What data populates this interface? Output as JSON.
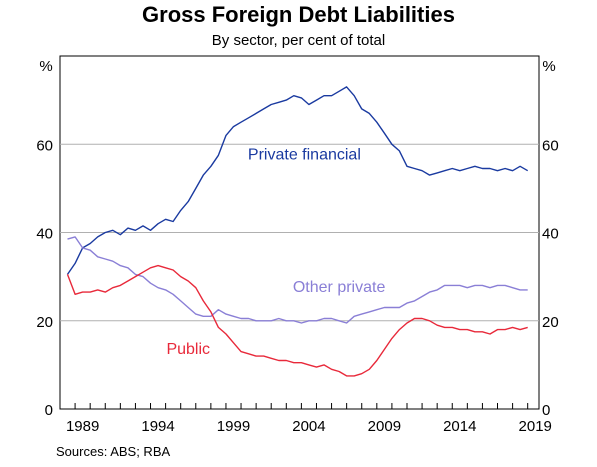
{
  "chart_data": {
    "type": "line",
    "title": "Gross Foreign Debt Liabilities",
    "subtitle": "By sector, per cent of total",
    "ylabel_left": "%",
    "ylabel_right": "%",
    "source": "Sources:   ABS; RBA",
    "xlim": [
      1988,
      2019.75
    ],
    "ylim": [
      0,
      80
    ],
    "y_ticks": [
      0,
      20,
      40,
      60
    ],
    "x_ticks": [
      1989,
      1994,
      1999,
      2004,
      2009,
      2014,
      2019
    ],
    "grid": "horizontal",
    "x": [
      1988.5,
      1989,
      1989.5,
      1990,
      1990.5,
      1991,
      1991.5,
      1992,
      1992.5,
      1993,
      1993.5,
      1994,
      1994.5,
      1995,
      1995.5,
      1996,
      1996.5,
      1997,
      1997.5,
      1998,
      1998.5,
      1999,
      1999.5,
      2000,
      2000.5,
      2001,
      2001.5,
      2002,
      2002.5,
      2003,
      2003.5,
      2004,
      2004.5,
      2005,
      2005.5,
      2006,
      2006.5,
      2007,
      2007.5,
      2008,
      2008.5,
      2009,
      2009.5,
      2010,
      2010.5,
      2011,
      2011.5,
      2012,
      2012.5,
      2013,
      2013.5,
      2014,
      2014.5,
      2015,
      2015.5,
      2016,
      2016.5,
      2017,
      2017.5,
      2018,
      2018.5,
      2019
    ],
    "series": [
      {
        "name": "Private financial",
        "color": "#1a3aa0",
        "label_at": [
          2004.2,
          56.5
        ],
        "values": [
          30.5,
          33,
          36.5,
          37.5,
          39,
          40,
          40.5,
          39.5,
          41,
          40.5,
          41.5,
          40.5,
          42,
          43,
          42.5,
          45,
          47,
          50,
          53,
          55,
          57.5,
          62,
          64,
          65,
          66,
          67,
          68,
          69,
          69.5,
          70,
          71,
          70.5,
          69,
          70,
          71,
          71,
          72,
          73,
          71,
          68,
          67,
          65,
          62.5,
          60,
          58.5,
          55,
          54.5,
          54,
          53,
          53.5,
          54,
          54.5,
          54,
          54.5,
          55,
          54.5,
          54.5,
          54,
          54.5,
          54,
          55,
          54
        ]
      },
      {
        "name": "Other private",
        "color": "#8a7fd6",
        "label_at": [
          2006.5,
          26.5
        ],
        "values": [
          38.5,
          39,
          36.5,
          36,
          34.5,
          34,
          33.5,
          32.5,
          32,
          30.5,
          30,
          28.5,
          27.5,
          27,
          26,
          24.5,
          23,
          21.5,
          21,
          21,
          22.5,
          21.5,
          21,
          20.5,
          20.5,
          20,
          20,
          20,
          20.5,
          20,
          20,
          19.5,
          20,
          20,
          20.5,
          20.5,
          20,
          19.5,
          21,
          21.5,
          22,
          22.5,
          23,
          23,
          23,
          24,
          24.5,
          25.5,
          26.5,
          27,
          28,
          28,
          28,
          27.5,
          28,
          28,
          27.5,
          28,
          28,
          27.5,
          27,
          27
        ]
      },
      {
        "name": "Public",
        "color": "#e8293a",
        "label_at": [
          1996.5,
          12.5
        ],
        "values": [
          30.5,
          26,
          26.5,
          26.5,
          27,
          26.5,
          27.5,
          28,
          29,
          30,
          31,
          32,
          32.5,
          32,
          31.5,
          30,
          29,
          27.5,
          24.5,
          22,
          18.5,
          17,
          15,
          13,
          12.5,
          12,
          12,
          11.5,
          11,
          11,
          10.5,
          10.5,
          10,
          9.5,
          10,
          9,
          8.5,
          7.5,
          7.5,
          8,
          9,
          11,
          13.5,
          16,
          18,
          19.5,
          20.5,
          20.5,
          20,
          19,
          18.5,
          18.5,
          18,
          18,
          17.5,
          17.5,
          17,
          18,
          18,
          18.5,
          18,
          18.5
        ]
      }
    ]
  }
}
